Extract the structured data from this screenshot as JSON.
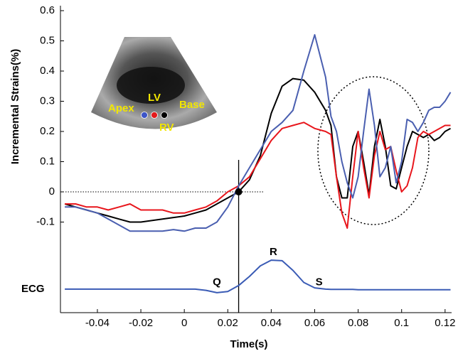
{
  "chart_data": {
    "type": "line",
    "y_label": "Incremental Strains(%)",
    "x_label": "Time(s)",
    "x": [
      -0.055,
      -0.05,
      -0.045,
      -0.04,
      -0.035,
      -0.03,
      -0.025,
      -0.02,
      -0.015,
      -0.01,
      -0.005,
      0,
      0.005,
      0.01,
      0.015,
      0.02,
      0.025,
      0.03,
      0.035,
      0.04,
      0.045,
      0.05,
      0.055,
      0.06,
      0.065,
      0.0675,
      0.07,
      0.0725,
      0.075,
      0.0775,
      0.08,
      0.0825,
      0.085,
      0.0875,
      0.09,
      0.0925,
      0.095,
      0.0975,
      0.1,
      0.1025,
      0.105,
      0.1075,
      0.11,
      0.1125,
      0.115,
      0.1175,
      0.12,
      0.1225
    ],
    "series": [
      {
        "color": "#000000",
        "values": [
          -0.04,
          -0.05,
          -0.06,
          -0.07,
          -0.08,
          -0.09,
          -0.1,
          -0.1,
          -0.095,
          -0.09,
          -0.085,
          -0.08,
          -0.07,
          -0.06,
          -0.04,
          -0.02,
          0.0,
          0.04,
          0.12,
          0.26,
          0.35,
          0.375,
          0.37,
          0.33,
          0.27,
          0.22,
          0.05,
          -0.02,
          -0.02,
          0.15,
          0.2,
          0.1,
          -0.01,
          0.15,
          0.24,
          0.15,
          0.02,
          0.01,
          0.08,
          0.15,
          0.2,
          0.19,
          0.18,
          0.19,
          0.17,
          0.18,
          0.2,
          0.21
        ]
      },
      {
        "color": "#e8161c",
        "values": [
          -0.04,
          -0.04,
          -0.05,
          -0.05,
          -0.06,
          -0.05,
          -0.04,
          -0.06,
          -0.06,
          -0.06,
          -0.07,
          -0.07,
          -0.06,
          -0.05,
          -0.03,
          0.0,
          0.02,
          0.05,
          0.11,
          0.17,
          0.21,
          0.22,
          0.23,
          0.21,
          0.2,
          0.19,
          0.05,
          -0.07,
          -0.12,
          0.05,
          0.2,
          0.08,
          -0.02,
          0.12,
          0.2,
          0.14,
          0.15,
          0.07,
          0.0,
          0.02,
          0.08,
          0.18,
          0.2,
          0.19,
          0.2,
          0.21,
          0.22,
          0.22
        ]
      },
      {
        "color": "#4a5fb0",
        "values": [
          -0.05,
          -0.05,
          -0.06,
          -0.07,
          -0.09,
          -0.11,
          -0.13,
          -0.13,
          -0.13,
          -0.13,
          -0.125,
          -0.13,
          -0.12,
          -0.12,
          -0.1,
          -0.05,
          0.02,
          0.08,
          0.14,
          0.2,
          0.23,
          0.27,
          0.4,
          0.52,
          0.38,
          0.25,
          0.2,
          0.1,
          0.03,
          -0.02,
          0.05,
          0.2,
          0.34,
          0.22,
          0.05,
          0.08,
          0.15,
          0.03,
          0.1,
          0.24,
          0.23,
          0.2,
          0.23,
          0.27,
          0.28,
          0.28,
          0.3,
          0.33
        ]
      },
      {
        "name": "ECG",
        "color": "#3a5bb5",
        "values": [
          -0.322,
          -0.322,
          -0.322,
          -0.322,
          -0.322,
          -0.322,
          -0.322,
          -0.322,
          -0.322,
          -0.322,
          -0.322,
          -0.322,
          -0.322,
          -0.326,
          -0.334,
          -0.33,
          -0.31,
          -0.28,
          -0.245,
          -0.226,
          -0.228,
          -0.26,
          -0.3,
          -0.318,
          -0.322,
          -0.323,
          -0.323,
          -0.323,
          -0.323,
          -0.323,
          -0.324,
          -0.324,
          -0.324,
          -0.324,
          -0.324,
          -0.324,
          -0.324,
          -0.324,
          -0.324,
          -0.324,
          -0.324,
          -0.324,
          -0.324,
          -0.324,
          -0.324,
          -0.324,
          -0.324,
          -0.324
        ]
      }
    ],
    "xlim": [
      -0.057,
      0.123
    ],
    "ylim": [
      -0.4,
      0.6
    ],
    "xticks": [
      -0.04,
      -0.02,
      0,
      0.02,
      0.04,
      0.06,
      0.08,
      0.1,
      0.12
    ],
    "yticks": [
      -0.1,
      0,
      0.1,
      0.2,
      0.3,
      0.4,
      0.5,
      0.6
    ],
    "reference": {
      "x": 0.025,
      "y": 0
    },
    "annotations": [
      {
        "text": "Q",
        "x": 0.015,
        "y": -0.3
      },
      {
        "text": "R",
        "x": 0.041,
        "y": -0.2
      },
      {
        "text": "S",
        "x": 0.062,
        "y": -0.3
      }
    ],
    "inset_labels": [
      "Apex",
      "LV",
      "RV",
      "Base"
    ]
  }
}
